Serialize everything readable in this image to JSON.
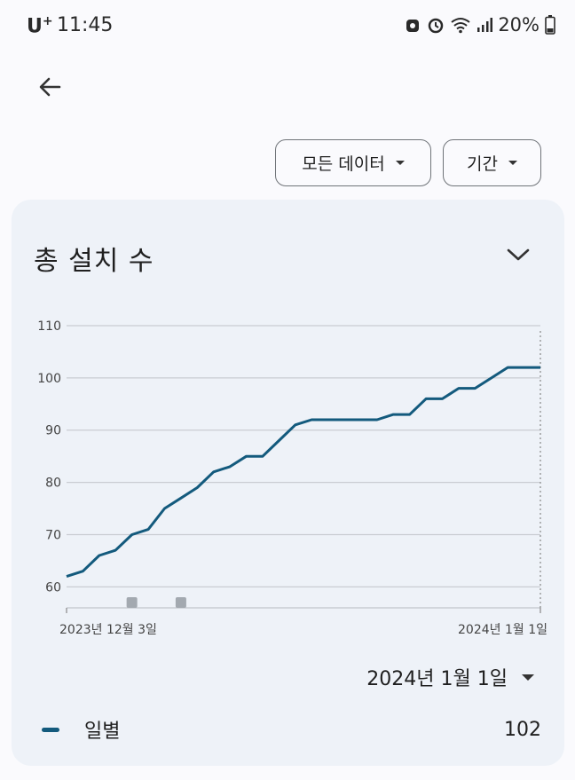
{
  "status_bar": {
    "carrier": "U",
    "carrier_sup": "+",
    "time": "11:45",
    "battery": "20%"
  },
  "filters": {
    "all_data_label": "모든 데이터",
    "period_label": "기간"
  },
  "card": {
    "title": "총 설치 수",
    "selected_date": "2024년 1월 1일",
    "legend": {
      "label": "일별",
      "value": "102",
      "color": "#135a7d"
    }
  },
  "chart_data": {
    "type": "line",
    "title": "총 설치 수",
    "x_start_label": "2023년 12월 3일",
    "x_end_label": "2024년 1월 1일",
    "x": [
      "2023-12-03",
      "2023-12-04",
      "2023-12-05",
      "2023-12-06",
      "2023-12-07",
      "2023-12-08",
      "2023-12-09",
      "2023-12-10",
      "2023-12-11",
      "2023-12-12",
      "2023-12-13",
      "2023-12-14",
      "2023-12-15",
      "2023-12-16",
      "2023-12-17",
      "2023-12-18",
      "2023-12-19",
      "2023-12-20",
      "2023-12-21",
      "2023-12-22",
      "2023-12-23",
      "2023-12-24",
      "2023-12-25",
      "2023-12-26",
      "2023-12-27",
      "2023-12-28",
      "2023-12-29",
      "2023-12-30",
      "2023-12-31",
      "2024-01-01"
    ],
    "series": [
      {
        "name": "일별",
        "color": "#135a7d",
        "values": [
          62,
          63,
          66,
          67,
          70,
          71,
          75,
          77,
          79,
          82,
          83,
          85,
          85,
          88,
          91,
          92,
          92,
          92,
          92,
          92,
          93,
          93,
          96,
          96,
          98,
          98,
          100,
          102,
          102,
          102
        ]
      }
    ],
    "ylim": [
      57,
      110
    ],
    "yticks": [
      60,
      70,
      80,
      90,
      100,
      110
    ],
    "annotation_markers": [
      "2023-12-07",
      "2023-12-10"
    ],
    "grid": true
  }
}
